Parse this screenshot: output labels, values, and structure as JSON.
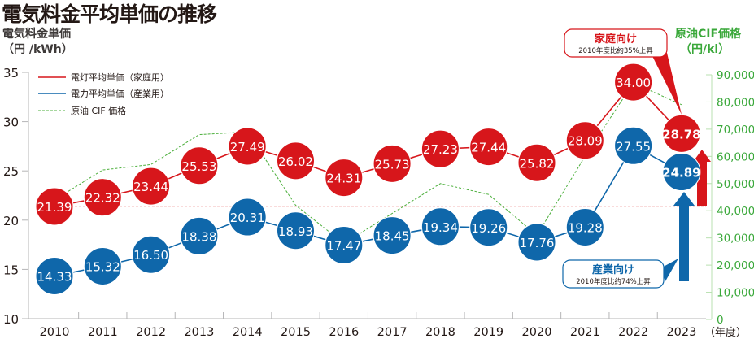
{
  "title": "電気料金平均単価の推移",
  "left_axis": {
    "label_line1": "電気料金単価",
    "label_line2": "（円 /kWh）"
  },
  "right_axis": {
    "label_line1": "原油CIF価格",
    "label_line2": "（円/kl）"
  },
  "x_suffix": "（年度）",
  "legend": {
    "household": "電灯平均単価（家庭用）",
    "industrial": "電力平均単価（産業用）",
    "crude": "原油 CIF 価格"
  },
  "callouts": {
    "household": {
      "title": "家庭向け",
      "sub": "2010年度比約35%上昇"
    },
    "industrial": {
      "title": "産業向け",
      "sub": "2010年度比約74%上昇"
    }
  },
  "colors": {
    "household": "#d7161b",
    "industrial": "#0f67aa",
    "crude": "#4caf3c",
    "right_axis": "#3aa83a"
  },
  "chart_data": {
    "type": "line",
    "title": "電気料金平均単価の推移",
    "x": [
      "2010",
      "2011",
      "2012",
      "2013",
      "2014",
      "2015",
      "2016",
      "2017",
      "2018",
      "2019",
      "2020",
      "2021",
      "2022",
      "2023"
    ],
    "xlabel": "（年度）",
    "ylabel": "電気料金単価（円 /kWh）",
    "ylim": [
      10,
      35
    ],
    "yticks": [
      10,
      15,
      20,
      25,
      30,
      35
    ],
    "y2label": "原油CIF価格（円/kl）",
    "y2lim": [
      0,
      90000
    ],
    "y2ticks": [
      0,
      10000,
      20000,
      30000,
      40000,
      50000,
      60000,
      70000,
      80000,
      90000
    ],
    "series": [
      {
        "name": "電灯平均単価（家庭用）",
        "axis": "left",
        "values": [
          21.39,
          22.32,
          23.44,
          25.53,
          27.49,
          26.02,
          24.31,
          25.73,
          27.23,
          27.44,
          25.82,
          28.09,
          34.0,
          28.78
        ]
      },
      {
        "name": "電力平均単価（産業用）",
        "axis": "left",
        "values": [
          14.33,
          15.32,
          16.5,
          18.38,
          20.31,
          18.93,
          17.47,
          18.45,
          19.34,
          19.26,
          17.76,
          19.28,
          27.55,
          24.89
        ]
      },
      {
        "name": "原油 CIF 価格",
        "axis": "right",
        "style": "dashed",
        "values": [
          44000,
          55000,
          57000,
          68000,
          69000,
          42000,
          28000,
          39000,
          50000,
          46000,
          31000,
          60000,
          87000,
          79000
        ]
      }
    ],
    "annotations": [
      {
        "text": "家庭向け 2010年度比約35%上昇",
        "target": "2023 household"
      },
      {
        "text": "産業向け 2010年度比約74%上昇",
        "target": "2023 industrial"
      }
    ],
    "reference_lines": [
      {
        "axis": "left",
        "value": 21.39,
        "color": "#d7161b",
        "style": "dashed"
      },
      {
        "axis": "left",
        "value": 14.33,
        "color": "#0f67aa",
        "style": "dashed"
      }
    ],
    "legend_position": "top-left",
    "grid": false
  }
}
